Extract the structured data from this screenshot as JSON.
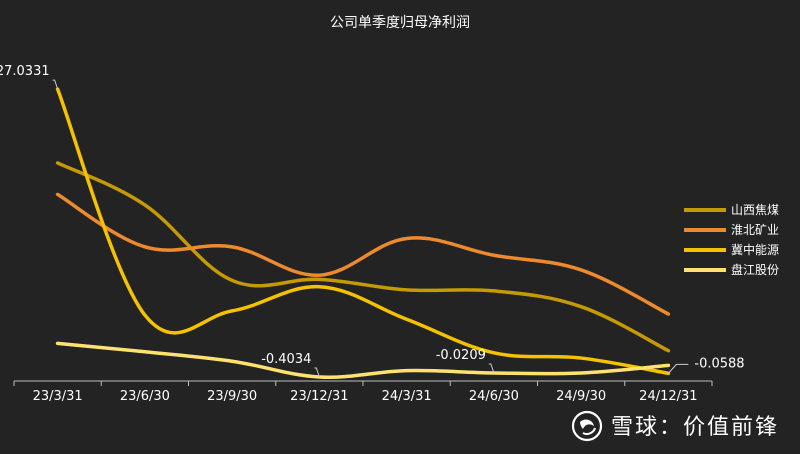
{
  "chart_data": {
    "type": "line",
    "title": "公司单季度归母净利润",
    "categories": [
      "23/3/31",
      "23/6/30",
      "23/9/30",
      "23/12/31",
      "24/3/31",
      "24/6/30",
      "24/9/30",
      "24/12/31"
    ],
    "series": [
      {
        "name": "山西焦煤",
        "color": "#c49a06",
        "values": [
          20.0,
          16.0,
          8.8,
          8.9,
          7.9,
          7.8,
          6.3,
          2.1
        ]
      },
      {
        "name": "淮北矿业",
        "color": "#ee8a2e",
        "values": [
          17.0,
          12.0,
          12.0,
          9.3,
          12.8,
          11.2,
          9.8,
          5.6
        ]
      },
      {
        "name": "冀中能源",
        "color": "#f4c200",
        "values": [
          27.0331,
          5.5,
          5.9,
          8.2,
          5.1,
          1.9,
          1.4,
          -0.0588
        ]
      },
      {
        "name": "盘江股份",
        "color": "#fde36e",
        "values": [
          2.8,
          2.0,
          1.1,
          -0.4034,
          0.2,
          -0.0209,
          -0.0209,
          0.7
        ]
      }
    ],
    "annotations": [
      {
        "text": "27.0331",
        "series": "冀中能源",
        "index": 0
      },
      {
        "text": "-0.4034",
        "series": "盘江股份",
        "index": 3
      },
      {
        "text": "-0.0209",
        "series": "盘江股份",
        "index": 5
      },
      {
        "text": "-0.0588",
        "series": "冀中能源",
        "index": 7
      }
    ],
    "ylim": [
      -0.5,
      28
    ],
    "grid": false,
    "legend": "right"
  },
  "watermark": "雪球：价值前锋"
}
